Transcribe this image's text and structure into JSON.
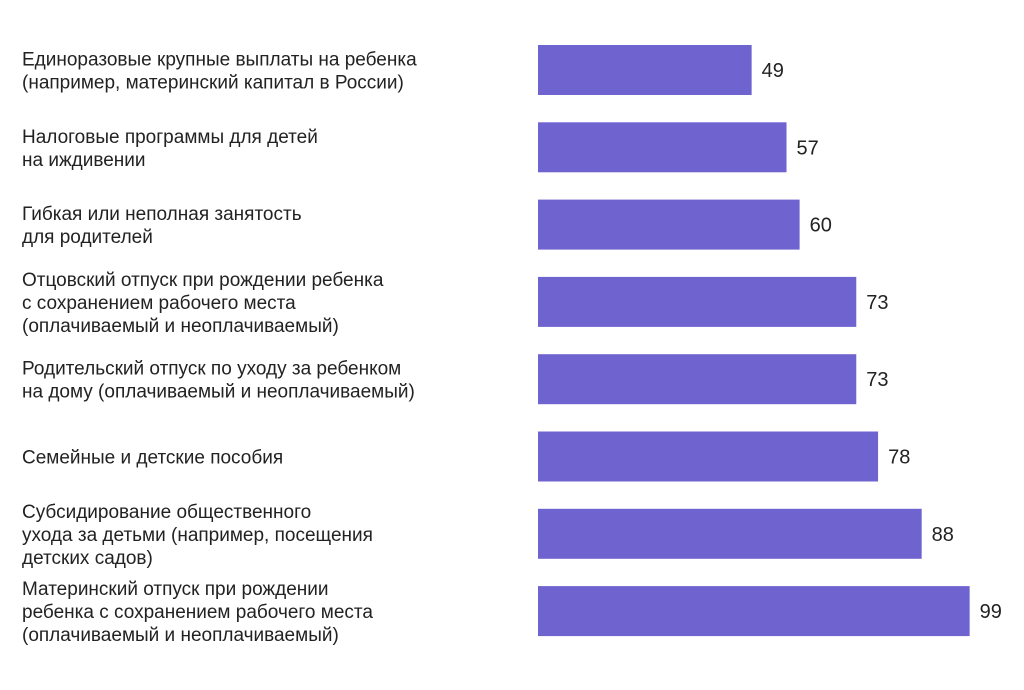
{
  "chart_data": {
    "type": "bar",
    "orientation": "horizontal",
    "title": "",
    "xlabel": "",
    "ylabel": "",
    "xlim": [
      0,
      100
    ],
    "grid": false,
    "legend": "none",
    "bar_color": "#6f64cf",
    "categories": [
      [
        "Единоразовые крупные выплаты на ребенка",
        "(например, материнский капитал в России)"
      ],
      [
        "Налоговые программы для детей",
        "на иждивении"
      ],
      [
        "Гибкая или неполная занятость",
        "для родителей"
      ],
      [
        "Отцовский отпуск при рождении ребенка",
        "с сохранением рабочего места",
        "(оплачиваемый и неоплачиваемый)"
      ],
      [
        "Родительский отпуск по уходу за ребенком",
        "на дому (оплачиваемый и неоплачиваемый)"
      ],
      [
        "Семейные и детские пособия"
      ],
      [
        "Субсидирование общественного",
        "ухода за детьми (например, посещения",
        "детских садов)"
      ],
      [
        "Материнский отпуск при рождении",
        "ребенка с сохранением рабочего места",
        "(оплачиваемый и неоплачиваемый)"
      ]
    ],
    "values": [
      49,
      57,
      60,
      73,
      73,
      78,
      88,
      99
    ]
  }
}
